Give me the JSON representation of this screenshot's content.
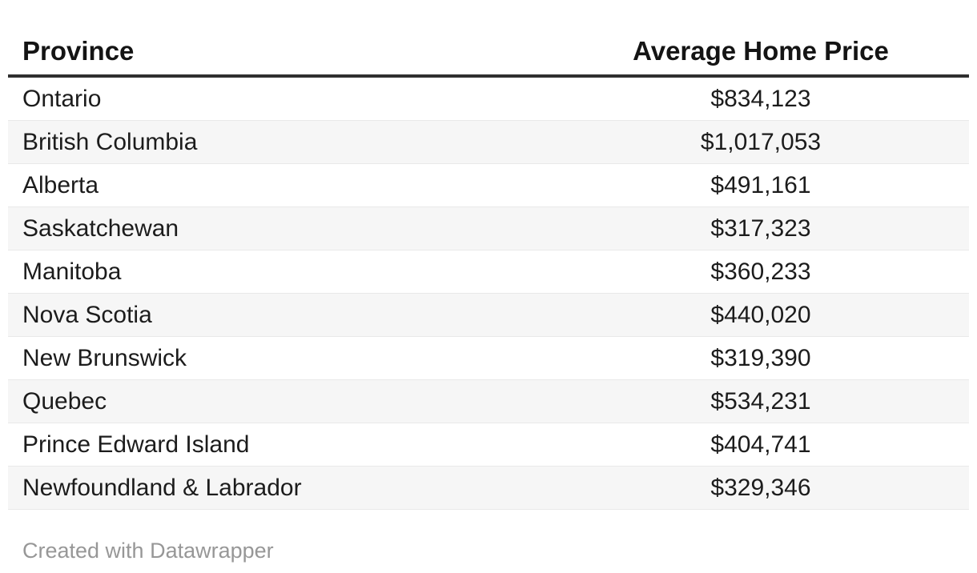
{
  "table": {
    "columns": [
      {
        "label": "Province"
      },
      {
        "label": "Average Home Price"
      }
    ],
    "rows": [
      {
        "province": "Ontario",
        "price": "$834,123"
      },
      {
        "province": "British Columbia",
        "price": "$1,017,053"
      },
      {
        "province": "Alberta",
        "price": "$491,161"
      },
      {
        "province": "Saskatchewan",
        "price": "$317,323"
      },
      {
        "province": "Manitoba",
        "price": "$360,233"
      },
      {
        "province": "Nova Scotia",
        "price": "$440,020"
      },
      {
        "province": "New Brunswick",
        "price": "$319,390"
      },
      {
        "province": "Quebec",
        "price": "$534,231"
      },
      {
        "province": "Prince Edward Island",
        "price": "$404,741"
      },
      {
        "province": "Newfoundland & Labrador",
        "price": "$329,346"
      }
    ]
  },
  "footer": {
    "credit": "Created with Datawrapper"
  },
  "colors": {
    "header_rule": "#2f2f2f",
    "stripe": "#f6f6f6",
    "row_divider": "#e9e9e9",
    "body_text": "#1c1c1c",
    "header_text": "#141414",
    "footer_text": "#979797",
    "background": "#ffffff"
  },
  "chart_data": {
    "type": "table",
    "title": "",
    "columns": [
      "Province",
      "Average Home Price"
    ],
    "categories": [
      "Ontario",
      "British Columbia",
      "Alberta",
      "Saskatchewan",
      "Manitoba",
      "Nova Scotia",
      "New Brunswick",
      "Quebec",
      "Prince Edward Island",
      "Newfoundland & Labrador"
    ],
    "values": [
      834123,
      1017053,
      491161,
      317323,
      360233,
      440020,
      319390,
      534231,
      404741,
      329346
    ],
    "value_format": "currency, $ with thousands commas",
    "layout": {
      "striped_rows": true,
      "price_column_alignment": "center",
      "province_column_alignment": "left"
    },
    "credit": "Created with Datawrapper"
  }
}
